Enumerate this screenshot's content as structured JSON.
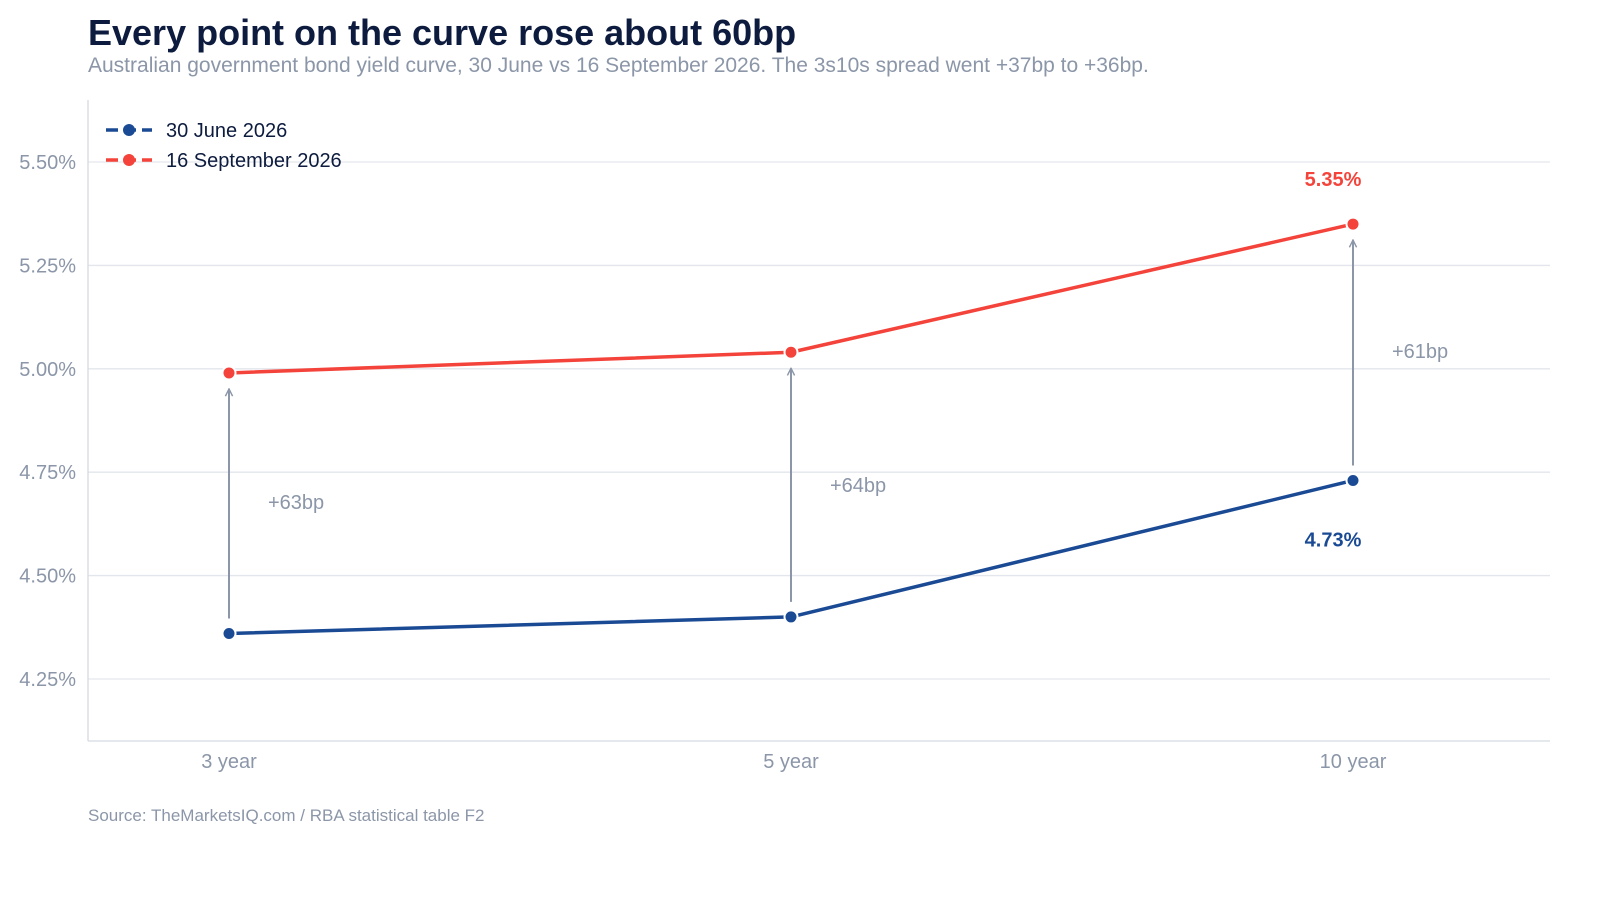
{
  "header": {
    "title": "Every point on the curve rose about 60bp",
    "subtitle": "Australian government bond yield curve, 30 June vs 16 September 2026. The 3s10s spread went +37bp to +36bp."
  },
  "footer": {
    "source": "Source: TheMarketsIQ.com / RBA statistical table F2"
  },
  "chart_data": {
    "type": "line",
    "categories": [
      "3 year",
      "5 year",
      "10 year"
    ],
    "series": [
      {
        "name": "30 June 2026",
        "values": [
          4.36,
          4.4,
          4.73
        ],
        "color": "#1b4a94"
      },
      {
        "name": "16 September 2026",
        "values": [
          4.99,
          5.04,
          5.35
        ],
        "color": "#f4433a"
      }
    ],
    "ylim": [
      4.1,
      5.65
    ],
    "yticks": [
      4.25,
      4.5,
      4.75,
      5.0,
      5.25,
      5.5
    ],
    "ytick_labels": [
      "4.25%",
      "4.50%",
      "4.75%",
      "5.00%",
      "5.25%",
      "5.50%"
    ],
    "grid": true,
    "legend_position": "top-left",
    "annotations": {
      "changes": [
        "+63bp",
        "+64bp",
        "+61bp"
      ],
      "end_labels": [
        "4.73%",
        "5.35%"
      ]
    },
    "arrow_color": "#8b96a8",
    "grid_color": "#e3e6ec",
    "axis_color": "#d5d9e0"
  }
}
